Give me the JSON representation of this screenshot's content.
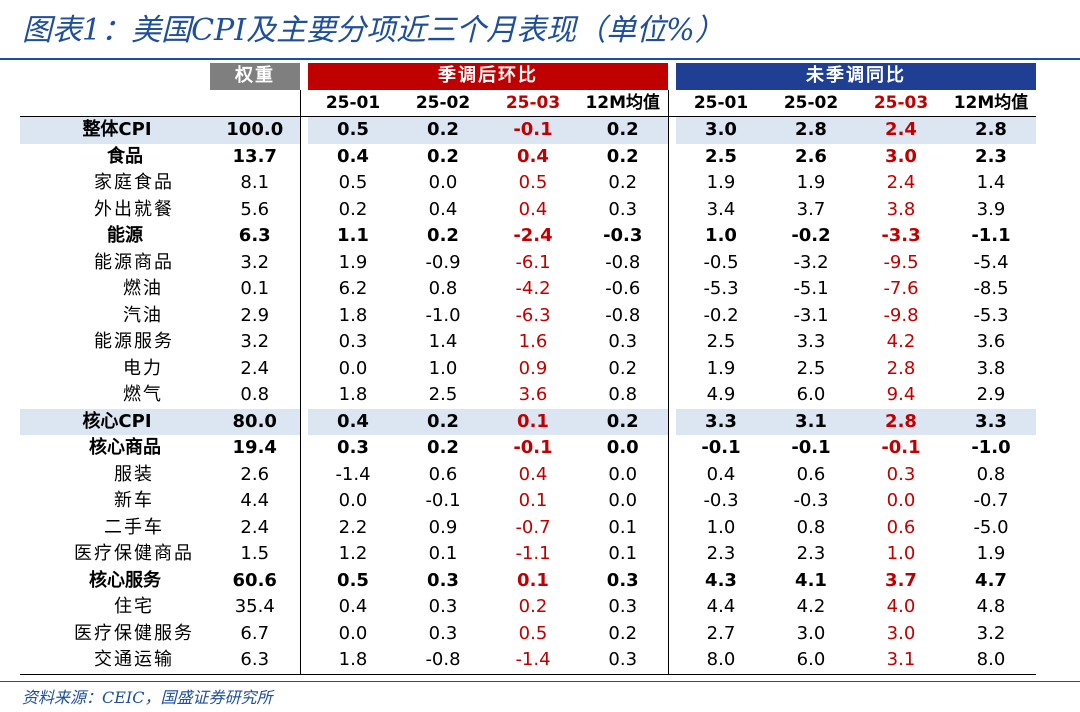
{
  "title": "图表1：美国CPI及主要分项近三个月表现（单位%）",
  "headers": {
    "weight": "权重",
    "mom_group": "季调后环比",
    "yoy_group": "未季调同比",
    "cols": [
      "25-01",
      "25-02",
      "25-03",
      "12M均值"
    ]
  },
  "colors": {
    "title_blue": "#1f4e9a",
    "header_red": "#c00000",
    "header_blue": "#1f3f94",
    "header_gray": "#7f7f7f",
    "highlight_row": "#dce6f2",
    "latest_month_text": "#c00000"
  },
  "rows": [
    {
      "name": "整体CPI",
      "level": 0,
      "bold": true,
      "highlight": true,
      "weight": "100.0",
      "mom": [
        "0.5",
        "0.2",
        "-0.1",
        "0.2"
      ],
      "yoy": [
        "3.0",
        "2.8",
        "2.4",
        "2.8"
      ]
    },
    {
      "name": "食品",
      "level": 1,
      "bold": true,
      "highlight": false,
      "weight": "13.7",
      "mom": [
        "0.4",
        "0.2",
        "0.4",
        "0.2"
      ],
      "yoy": [
        "2.5",
        "2.6",
        "3.0",
        "2.3"
      ]
    },
    {
      "name": "家庭食品",
      "level": 2,
      "bold": false,
      "highlight": false,
      "weight": "8.1",
      "mom": [
        "0.5",
        "0.0",
        "0.5",
        "0.2"
      ],
      "yoy": [
        "1.9",
        "1.9",
        "2.4",
        "1.4"
      ]
    },
    {
      "name": "外出就餐",
      "level": 2,
      "bold": false,
      "highlight": false,
      "weight": "5.6",
      "mom": [
        "0.2",
        "0.4",
        "0.4",
        "0.3"
      ],
      "yoy": [
        "3.4",
        "3.7",
        "3.8",
        "3.9"
      ]
    },
    {
      "name": "能源",
      "level": 1,
      "bold": true,
      "highlight": false,
      "weight": "6.3",
      "mom": [
        "1.1",
        "0.2",
        "-2.4",
        "-0.3"
      ],
      "yoy": [
        "1.0",
        "-0.2",
        "-3.3",
        "-1.1"
      ]
    },
    {
      "name": "能源商品",
      "level": 2,
      "bold": false,
      "highlight": false,
      "weight": "3.2",
      "mom": [
        "1.9",
        "-0.9",
        "-6.1",
        "-0.8"
      ],
      "yoy": [
        "-0.5",
        "-3.2",
        "-9.5",
        "-5.4"
      ]
    },
    {
      "name": "燃油",
      "level": 3,
      "bold": false,
      "highlight": false,
      "weight": "0.1",
      "mom": [
        "6.2",
        "0.8",
        "-4.2",
        "-0.6"
      ],
      "yoy": [
        "-5.3",
        "-5.1",
        "-7.6",
        "-8.5"
      ]
    },
    {
      "name": "汽油",
      "level": 3,
      "bold": false,
      "highlight": false,
      "weight": "2.9",
      "mom": [
        "1.8",
        "-1.0",
        "-6.3",
        "-0.8"
      ],
      "yoy": [
        "-0.2",
        "-3.1",
        "-9.8",
        "-5.3"
      ]
    },
    {
      "name": "能源服务",
      "level": 2,
      "bold": false,
      "highlight": false,
      "weight": "3.2",
      "mom": [
        "0.3",
        "1.4",
        "1.6",
        "0.3"
      ],
      "yoy": [
        "2.5",
        "3.3",
        "4.2",
        "3.6"
      ]
    },
    {
      "name": "电力",
      "level": 3,
      "bold": false,
      "highlight": false,
      "weight": "2.4",
      "mom": [
        "0.0",
        "1.0",
        "0.9",
        "0.2"
      ],
      "yoy": [
        "1.9",
        "2.5",
        "2.8",
        "3.8"
      ]
    },
    {
      "name": "燃气",
      "level": 3,
      "bold": false,
      "highlight": false,
      "weight": "0.8",
      "mom": [
        "1.8",
        "2.5",
        "3.6",
        "0.8"
      ],
      "yoy": [
        "4.9",
        "6.0",
        "9.4",
        "2.9"
      ]
    },
    {
      "name": "核心CPI",
      "level": 0,
      "bold": true,
      "highlight": true,
      "weight": "80.0",
      "mom": [
        "0.4",
        "0.2",
        "0.1",
        "0.2"
      ],
      "yoy": [
        "3.3",
        "3.1",
        "2.8",
        "3.3"
      ]
    },
    {
      "name": "核心商品",
      "level": 1,
      "bold": true,
      "highlight": false,
      "weight": "19.4",
      "mom": [
        "0.3",
        "0.2",
        "-0.1",
        "0.0"
      ],
      "yoy": [
        "-0.1",
        "-0.1",
        "-0.1",
        "-1.0"
      ]
    },
    {
      "name": "服装",
      "level": 2,
      "bold": false,
      "highlight": false,
      "weight": "2.6",
      "mom": [
        "-1.4",
        "0.6",
        "0.4",
        "0.0"
      ],
      "yoy": [
        "0.4",
        "0.6",
        "0.3",
        "0.8"
      ]
    },
    {
      "name": "新车",
      "level": 2,
      "bold": false,
      "highlight": false,
      "weight": "4.4",
      "mom": [
        "0.0",
        "-0.1",
        "0.1",
        "0.0"
      ],
      "yoy": [
        "-0.3",
        "-0.3",
        "0.0",
        "-0.7"
      ]
    },
    {
      "name": "二手车",
      "level": 2,
      "bold": false,
      "highlight": false,
      "weight": "2.4",
      "mom": [
        "2.2",
        "0.9",
        "-0.7",
        "0.1"
      ],
      "yoy": [
        "1.0",
        "0.8",
        "0.6",
        "-5.0"
      ]
    },
    {
      "name": "医疗保健商品",
      "level": 2,
      "bold": false,
      "highlight": false,
      "weight": "1.5",
      "mom": [
        "1.2",
        "0.1",
        "-1.1",
        "0.1"
      ],
      "yoy": [
        "2.3",
        "2.3",
        "1.0",
        "1.9"
      ]
    },
    {
      "name": "核心服务",
      "level": 1,
      "bold": true,
      "highlight": false,
      "weight": "60.6",
      "mom": [
        "0.5",
        "0.3",
        "0.1",
        "0.3"
      ],
      "yoy": [
        "4.3",
        "4.1",
        "3.7",
        "4.7"
      ]
    },
    {
      "name": "住宅",
      "level": 2,
      "bold": false,
      "highlight": false,
      "weight": "35.4",
      "mom": [
        "0.4",
        "0.3",
        "0.2",
        "0.3"
      ],
      "yoy": [
        "4.4",
        "4.2",
        "4.0",
        "4.8"
      ]
    },
    {
      "name": "医疗保健服务",
      "level": 2,
      "bold": false,
      "highlight": false,
      "weight": "6.7",
      "mom": [
        "0.0",
        "0.3",
        "0.5",
        "0.2"
      ],
      "yoy": [
        "2.7",
        "3.0",
        "3.0",
        "3.2"
      ]
    },
    {
      "name": "交通运输",
      "level": 2,
      "bold": false,
      "highlight": false,
      "weight": "6.3",
      "mom": [
        "1.8",
        "-0.8",
        "-1.4",
        "0.3"
      ],
      "yoy": [
        "8.0",
        "6.0",
        "3.1",
        "8.0"
      ]
    }
  ],
  "source": "资料来源：CEIC，国盛证券研究所"
}
